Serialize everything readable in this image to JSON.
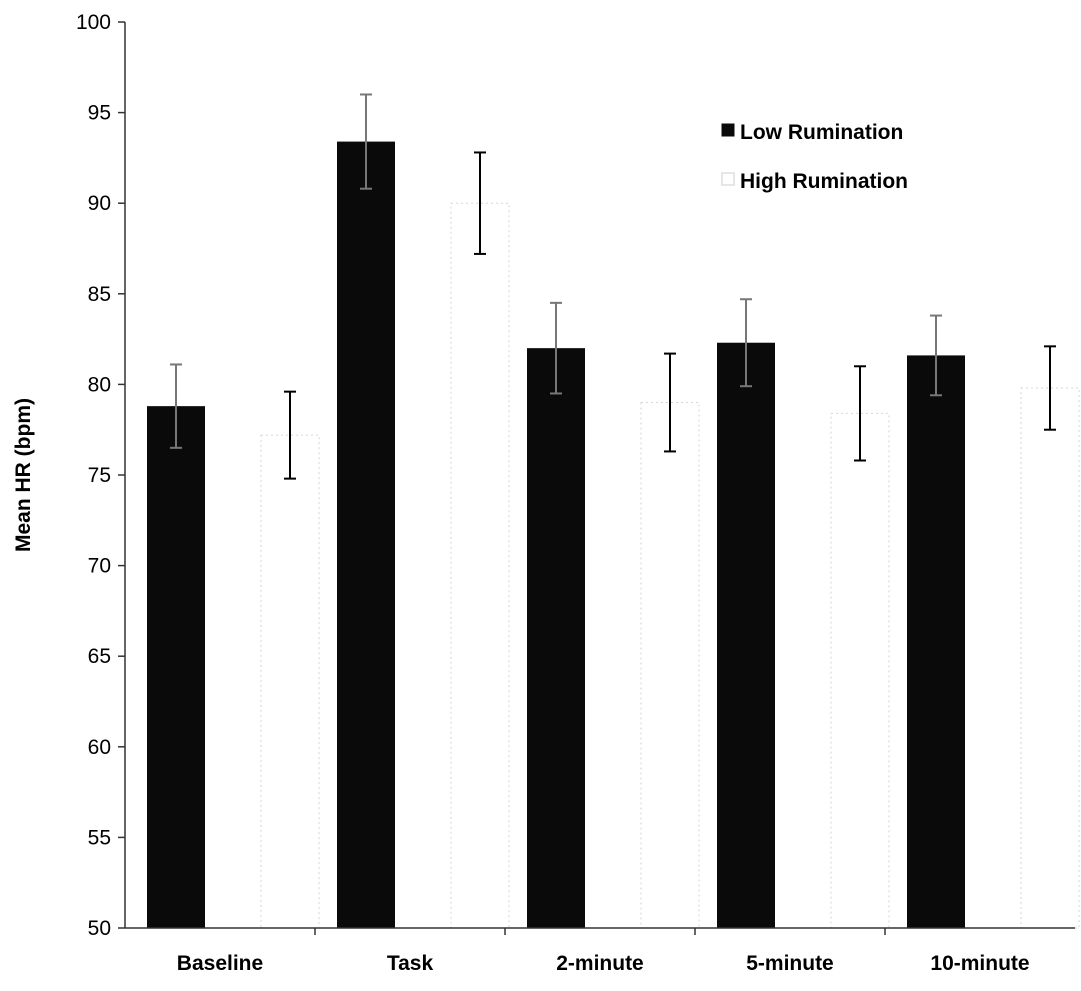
{
  "chart_data": {
    "type": "bar",
    "title": "",
    "xlabel": "",
    "ylabel": "Mean HR (bpm)",
    "ylim": [
      50,
      100
    ],
    "yticks": [
      "50",
      "55",
      "60",
      "65",
      "70",
      "75",
      "80",
      "85",
      "90",
      "95",
      "100"
    ],
    "categories": [
      "Baseline",
      "Task",
      "2-minute",
      "5-minute",
      "10-minute"
    ],
    "grid": false,
    "legend_position": "top-right",
    "series": [
      {
        "name": "Low Rumination",
        "color": "#0a0a0a",
        "values": [
          78.8,
          93.4,
          82.0,
          82.3,
          81.6
        ],
        "error": [
          2.3,
          2.6,
          2.5,
          2.4,
          2.2
        ]
      },
      {
        "name": "High Rumination",
        "color": "#ffffff",
        "values": [
          77.2,
          90.0,
          79.0,
          78.4,
          79.8
        ],
        "error": [
          2.4,
          2.8,
          2.7,
          2.6,
          2.3
        ]
      }
    ]
  }
}
